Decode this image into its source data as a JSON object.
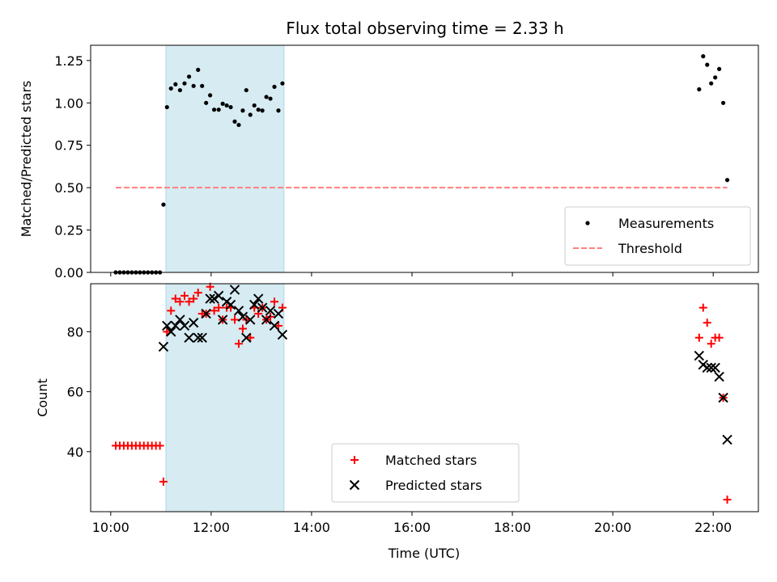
{
  "chart_data": {
    "title": "Flux total observing time = 2.33 h",
    "xlabel": "Time (UTC)",
    "x_unit": "hours UTC",
    "xlim": [
      9.6,
      22.9
    ],
    "xticks": [
      {
        "value": 10,
        "label": "10:00"
      },
      {
        "value": 12,
        "label": "12:00"
      },
      {
        "value": 14,
        "label": "14:00"
      },
      {
        "value": 16,
        "label": "16:00"
      },
      {
        "value": 18,
        "label": "18:00"
      },
      {
        "value": 20,
        "label": "20:00"
      },
      {
        "value": 22,
        "label": "22:00"
      }
    ],
    "highlight_span": {
      "x_start": 11.1,
      "x_end": 13.45,
      "color": "#add8e6"
    },
    "top": {
      "type": "scatter",
      "ylabel": "Matched/Predicted stars",
      "ylim": [
        0,
        1.34
      ],
      "yticks": [
        "0.00",
        "0.25",
        "0.50",
        "0.75",
        "1.00",
        "1.25"
      ],
      "legend_position": "lower-right",
      "series": [
        {
          "name": "Measurements",
          "color": "#000000",
          "marker": "dot",
          "points": [
            [
              10.1,
              0
            ],
            [
              10.18,
              0
            ],
            [
              10.26,
              0
            ],
            [
              10.34,
              0
            ],
            [
              10.42,
              0
            ],
            [
              10.5,
              0
            ],
            [
              10.58,
              0
            ],
            [
              10.66,
              0
            ],
            [
              10.74,
              0
            ],
            [
              10.82,
              0
            ],
            [
              10.9,
              0
            ],
            [
              10.98,
              0
            ],
            [
              11.05,
              0.4
            ],
            [
              11.12,
              0.975
            ],
            [
              11.2,
              1.085
            ],
            [
              11.29,
              1.11
            ],
            [
              11.38,
              1.075
            ],
            [
              11.47,
              1.115
            ],
            [
              11.56,
              1.155
            ],
            [
              11.65,
              1.1
            ],
            [
              11.74,
              1.195
            ],
            [
              11.82,
              1.1
            ],
            [
              11.9,
              1.0
            ],
            [
              11.98,
              1.045
            ],
            [
              12.06,
              0.96
            ],
            [
              12.15,
              0.96
            ],
            [
              12.23,
              0.995
            ],
            [
              12.31,
              0.985
            ],
            [
              12.39,
              0.975
            ],
            [
              12.47,
              0.89
            ],
            [
              12.55,
              0.87
            ],
            [
              12.63,
              0.955
            ],
            [
              12.7,
              1.075
            ],
            [
              12.78,
              0.93
            ],
            [
              12.86,
              0.985
            ],
            [
              12.94,
              0.96
            ],
            [
              13.02,
              0.955
            ],
            [
              13.1,
              1.035
            ],
            [
              13.18,
              1.025
            ],
            [
              13.26,
              1.095
            ],
            [
              13.34,
              0.955
            ],
            [
              13.42,
              1.115
            ],
            [
              21.72,
              1.08
            ],
            [
              21.8,
              1.275
            ],
            [
              21.88,
              1.225
            ],
            [
              21.96,
              1.115
            ],
            [
              22.04,
              1.15
            ],
            [
              22.12,
              1.2
            ],
            [
              22.2,
              1.0
            ],
            [
              22.28,
              0.545
            ]
          ]
        },
        {
          "name": "Threshold",
          "color": "#ff7f7f",
          "style": "dashed",
          "points": [
            [
              10.1,
              0.5
            ],
            [
              22.28,
              0.5
            ]
          ]
        }
      ]
    },
    "bottom": {
      "type": "scatter",
      "ylabel": "Count",
      "ylim": [
        20,
        96
      ],
      "yticks": [
        "40",
        "60",
        "80"
      ],
      "legend_position": "lower-center",
      "series": [
        {
          "name": "Matched stars",
          "color": "#ff0000",
          "marker": "plus",
          "points": [
            [
              10.1,
              42
            ],
            [
              10.18,
              42
            ],
            [
              10.26,
              42
            ],
            [
              10.34,
              42
            ],
            [
              10.42,
              42
            ],
            [
              10.5,
              42
            ],
            [
              10.58,
              42
            ],
            [
              10.66,
              42
            ],
            [
              10.74,
              42
            ],
            [
              10.82,
              42
            ],
            [
              10.9,
              42
            ],
            [
              10.98,
              42
            ],
            [
              11.05,
              30
            ],
            [
              11.12,
              80
            ],
            [
              11.2,
              87
            ],
            [
              11.29,
              91
            ],
            [
              11.38,
              90
            ],
            [
              11.47,
              92
            ],
            [
              11.56,
              90
            ],
            [
              11.65,
              91
            ],
            [
              11.74,
              93
            ],
            [
              11.82,
              86
            ],
            [
              11.9,
              86
            ],
            [
              11.98,
              95
            ],
            [
              12.06,
              87
            ],
            [
              12.15,
              88
            ],
            [
              12.23,
              84
            ],
            [
              12.31,
              88
            ],
            [
              12.39,
              88
            ],
            [
              12.47,
              84
            ],
            [
              12.55,
              76
            ],
            [
              12.63,
              81
            ],
            [
              12.7,
              84
            ],
            [
              12.78,
              78
            ],
            [
              12.86,
              88
            ],
            [
              12.94,
              86
            ],
            [
              13.02,
              88
            ],
            [
              13.1,
              84
            ],
            [
              13.18,
              85
            ],
            [
              13.26,
              90
            ],
            [
              13.34,
              82
            ],
            [
              13.42,
              88
            ],
            [
              21.72,
              78
            ],
            [
              21.8,
              88
            ],
            [
              21.88,
              83
            ],
            [
              21.96,
              76
            ],
            [
              22.04,
              78
            ],
            [
              22.12,
              78
            ],
            [
              22.2,
              58
            ],
            [
              22.28,
              24
            ]
          ]
        },
        {
          "name": "Predicted stars",
          "color": "#000000",
          "marker": "x",
          "points": [
            [
              11.05,
              75
            ],
            [
              11.12,
              82
            ],
            [
              11.2,
              80
            ],
            [
              11.29,
              82
            ],
            [
              11.38,
              84
            ],
            [
              11.47,
              82
            ],
            [
              11.56,
              78
            ],
            [
              11.65,
              83
            ],
            [
              11.74,
              78
            ],
            [
              11.82,
              78
            ],
            [
              11.9,
              86
            ],
            [
              11.98,
              91
            ],
            [
              12.06,
              91
            ],
            [
              12.15,
              92
            ],
            [
              12.23,
              84
            ],
            [
              12.31,
              90
            ],
            [
              12.39,
              89
            ],
            [
              12.47,
              94
            ],
            [
              12.55,
              87
            ],
            [
              12.63,
              85
            ],
            [
              12.7,
              78
            ],
            [
              12.78,
              84
            ],
            [
              12.86,
              89
            ],
            [
              12.94,
              91
            ],
            [
              13.02,
              88
            ],
            [
              13.1,
              84
            ],
            [
              13.18,
              87
            ],
            [
              13.26,
              82
            ],
            [
              13.34,
              86
            ],
            [
              13.42,
              79
            ],
            [
              21.72,
              72
            ],
            [
              21.8,
              69
            ],
            [
              21.88,
              68
            ],
            [
              21.96,
              68
            ],
            [
              22.04,
              68
            ],
            [
              22.12,
              65
            ],
            [
              22.2,
              58
            ],
            [
              22.28,
              44
            ]
          ]
        }
      ]
    }
  }
}
